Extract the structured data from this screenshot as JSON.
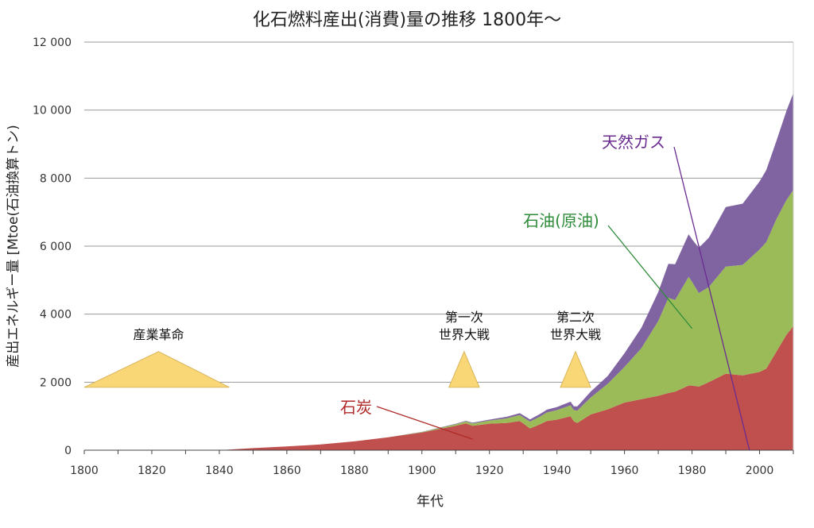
{
  "chart_data": {
    "type": "area",
    "stacked": true,
    "title": "化石燃料産出(消費)量の推移 1800年〜",
    "xlabel": "年代",
    "ylabel": "産出エネルギー量 [Mtoe(石油換算トン)",
    "xlim": [
      1800,
      2010
    ],
    "ylim": [
      0,
      12000
    ],
    "x_ticks": [
      1800,
      1820,
      1840,
      1860,
      1880,
      1900,
      1920,
      1940,
      1960,
      1980,
      2000
    ],
    "y_ticks": [
      {
        "value": 0,
        "label": "0"
      },
      {
        "value": 2000,
        "label": "2 000"
      },
      {
        "value": 4000,
        "label": "4 000"
      },
      {
        "value": 6000,
        "label": "6 000"
      },
      {
        "value": 8000,
        "label": "8 000"
      },
      {
        "value": 10000,
        "label": "10 000"
      },
      {
        "value": 12000,
        "label": "12 000"
      }
    ],
    "grid": true,
    "series": [
      {
        "name": "石炭",
        "color": "#c0504d",
        "label_color": "#b02a2a",
        "x": [
          1800,
          1840,
          1850,
          1860,
          1870,
          1880,
          1890,
          1900,
          1910,
          1913,
          1915,
          1920,
          1925,
          1929,
          1932,
          1935,
          1937,
          1940,
          1944,
          1945,
          1946,
          1950,
          1955,
          1960,
          1965,
          1970,
          1973,
          1975,
          1979,
          1980,
          1982,
          1985,
          1990,
          1995,
          2000,
          2002,
          2005,
          2008,
          2010
        ],
        "values": [
          0,
          0,
          60,
          110,
          170,
          260,
          380,
          520,
          720,
          790,
          720,
          780,
          800,
          860,
          640,
          760,
          860,
          900,
          1000,
          850,
          800,
          1050,
          1200,
          1400,
          1500,
          1600,
          1680,
          1720,
          1900,
          1900,
          1870,
          2000,
          2250,
          2200,
          2300,
          2400,
          2900,
          3400,
          3650
        ]
      },
      {
        "name": "石油(原油)",
        "color": "#9bbb59",
        "label_color": "#2e8b3a",
        "x": [
          1800,
          1890,
          1900,
          1910,
          1920,
          1930,
          1940,
          1945,
          1950,
          1955,
          1960,
          1965,
          1970,
          1973,
          1975,
          1979,
          1980,
          1982,
          1985,
          1990,
          1995,
          2000,
          2005,
          2010
        ],
        "values": [
          0,
          0,
          15,
          40,
          90,
          180,
          280,
          330,
          500,
          750,
          1050,
          1500,
          2200,
          2800,
          2700,
          3200,
          3050,
          2750,
          2800,
          3150,
          3250,
          3600,
          3900,
          4000
        ]
      },
      {
        "name": "天然ガス",
        "color": "#8064a2",
        "label_color": "#6a2c91",
        "x": [
          1800,
          1890,
          1900,
          1910,
          1920,
          1930,
          1940,
          1945,
          1950,
          1955,
          1960,
          1965,
          1970,
          1973,
          1975,
          1979,
          1980,
          1985,
          1990,
          1995,
          2000,
          2005,
          2010
        ],
        "values": [
          0,
          0,
          5,
          15,
          30,
          60,
          90,
          110,
          170,
          230,
          400,
          600,
          850,
          1000,
          1050,
          1250,
          1250,
          1450,
          1750,
          1800,
          2000,
          2300,
          2850
        ]
      }
    ],
    "annotations": [
      {
        "text": "産業革命",
        "lines": [
          "産業革命"
        ],
        "x_start": 1800,
        "x_end": 1843,
        "x_peak": 1822,
        "peak_value": 2900,
        "base_value": 1850
      },
      {
        "text": "第一次世界大戦",
        "lines": [
          "第一次",
          "世界大戦"
        ],
        "x_start": 1908,
        "x_end": 1917,
        "x_peak": 1912.5,
        "peak_value": 2900,
        "base_value": 1850
      },
      {
        "text": "第二次世界大戦",
        "lines": [
          "第二次",
          "世界大戦"
        ],
        "x_start": 1941,
        "x_end": 1950,
        "x_peak": 1945.5,
        "peak_value": 2900,
        "base_value": 1850
      }
    ],
    "annotation_color": "#fad776",
    "grid_color": "#9a9a9a"
  }
}
